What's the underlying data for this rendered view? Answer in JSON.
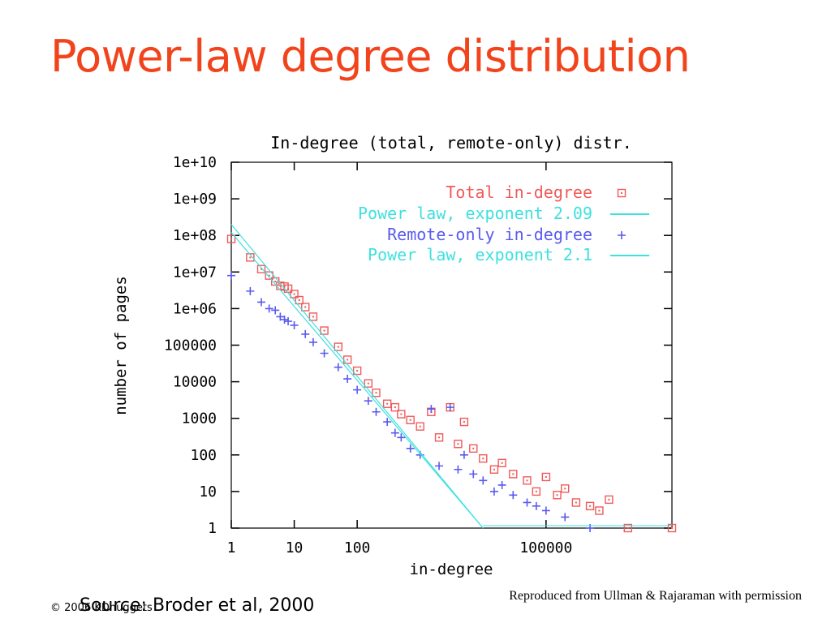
{
  "slide": {
    "title": "Power-law degree distribution",
    "source": "Source: Broder et al, 2000",
    "copyright": "© 2006 KDnuggets",
    "reproduced": "Reproduced from Ullman & Rajaraman with permission"
  },
  "colors": {
    "title": "#f2441c",
    "total_series": "#f05a5a",
    "remote_series": "#5a5af0",
    "fit_line": "#3fe0e0"
  },
  "chart_data": {
    "type": "scatter",
    "title": "In-degree (total, remote-only) distr.",
    "xlabel": "in-degree",
    "ylabel": "number of pages",
    "x_scale": "log",
    "y_scale": "log",
    "xlim": [
      1,
      10000000
    ],
    "ylim": [
      1,
      10000000000
    ],
    "x_ticks": [
      {
        "value": 1,
        "label": "1"
      },
      {
        "value": 10,
        "label": "10"
      },
      {
        "value": 100,
        "label": "100"
      },
      {
        "value": 100000,
        "label": "100000"
      }
    ],
    "y_ticks": [
      {
        "value": 1,
        "label": "1"
      },
      {
        "value": 10,
        "label": "10"
      },
      {
        "value": 100,
        "label": "100"
      },
      {
        "value": 1000,
        "label": "1000"
      },
      {
        "value": 10000,
        "label": "10000"
      },
      {
        "value": 100000,
        "label": "100000"
      },
      {
        "value": 1000000,
        "label": "1e+06"
      },
      {
        "value": 10000000,
        "label": "1e+07"
      },
      {
        "value": 100000000,
        "label": "1e+08"
      },
      {
        "value": 1000000000,
        "label": "1e+09"
      },
      {
        "value": 10000000000,
        "label": "1e+10"
      }
    ],
    "legend_position": "top-right",
    "series": [
      {
        "name": "Total in-degree",
        "marker": "square-dot",
        "color": "#f05a5a",
        "points": [
          [
            1,
            80000000
          ],
          [
            2,
            25000000
          ],
          [
            3,
            12000000
          ],
          [
            4,
            8000000
          ],
          [
            5,
            5500000
          ],
          [
            6,
            4200000
          ],
          [
            7,
            4000000
          ],
          [
            8,
            3500000
          ],
          [
            10,
            2500000
          ],
          [
            12,
            1700000
          ],
          [
            15,
            1100000
          ],
          [
            20,
            600000
          ],
          [
            30,
            250000
          ],
          [
            50,
            90000
          ],
          [
            70,
            40000
          ],
          [
            100,
            20000
          ],
          [
            150,
            9000
          ],
          [
            200,
            5000
          ],
          [
            300,
            2500
          ],
          [
            400,
            2000
          ],
          [
            500,
            1300
          ],
          [
            700,
            900
          ],
          [
            1000,
            600
          ],
          [
            1500,
            1500
          ],
          [
            2000,
            300
          ],
          [
            3000,
            2000
          ],
          [
            4000,
            200
          ],
          [
            5000,
            800
          ],
          [
            7000,
            150
          ],
          [
            10000,
            80
          ],
          [
            15000,
            40
          ],
          [
            20000,
            60
          ],
          [
            30000,
            30
          ],
          [
            50000,
            20
          ],
          [
            70000,
            10
          ],
          [
            100000,
            25
          ],
          [
            150000,
            8
          ],
          [
            200000,
            12
          ],
          [
            300000,
            5
          ],
          [
            500000,
            4
          ],
          [
            700000,
            3
          ],
          [
            1000000,
            6
          ],
          [
            2000000,
            1
          ],
          [
            10000000,
            1
          ]
        ]
      },
      {
        "name": "Power law, exponent 2.09",
        "type": "line",
        "color": "#3fe0e0",
        "points": [
          [
            1,
            200000000
          ],
          [
            10000,
            1
          ]
        ]
      },
      {
        "name": "Remote-only in-degree",
        "marker": "plus",
        "color": "#5a5af0",
        "points": [
          [
            1,
            8000000
          ],
          [
            2,
            3000000
          ],
          [
            3,
            1500000
          ],
          [
            4,
            1000000
          ],
          [
            5,
            900000
          ],
          [
            6,
            600000
          ],
          [
            7,
            500000
          ],
          [
            8,
            450000
          ],
          [
            10,
            350000
          ],
          [
            15,
            200000
          ],
          [
            20,
            120000
          ],
          [
            30,
            60000
          ],
          [
            50,
            25000
          ],
          [
            70,
            12000
          ],
          [
            100,
            6000
          ],
          [
            150,
            3000
          ],
          [
            200,
            1500
          ],
          [
            300,
            800
          ],
          [
            400,
            400
          ],
          [
            500,
            300
          ],
          [
            700,
            150
          ],
          [
            1000,
            100
          ],
          [
            1500,
            1800
          ],
          [
            2000,
            50
          ],
          [
            3000,
            2000
          ],
          [
            4000,
            40
          ],
          [
            5000,
            100
          ],
          [
            7000,
            30
          ],
          [
            10000,
            20
          ],
          [
            15000,
            10
          ],
          [
            20000,
            15
          ],
          [
            30000,
            8
          ],
          [
            50000,
            5
          ],
          [
            70000,
            4
          ],
          [
            100000,
            3
          ],
          [
            200000,
            2
          ],
          [
            500000,
            1
          ]
        ]
      },
      {
        "name": "Power law, exponent 2.1",
        "type": "line",
        "color": "#3fe0e0",
        "points": [
          [
            1,
            120000000
          ],
          [
            10000,
            1
          ]
        ]
      }
    ]
  }
}
